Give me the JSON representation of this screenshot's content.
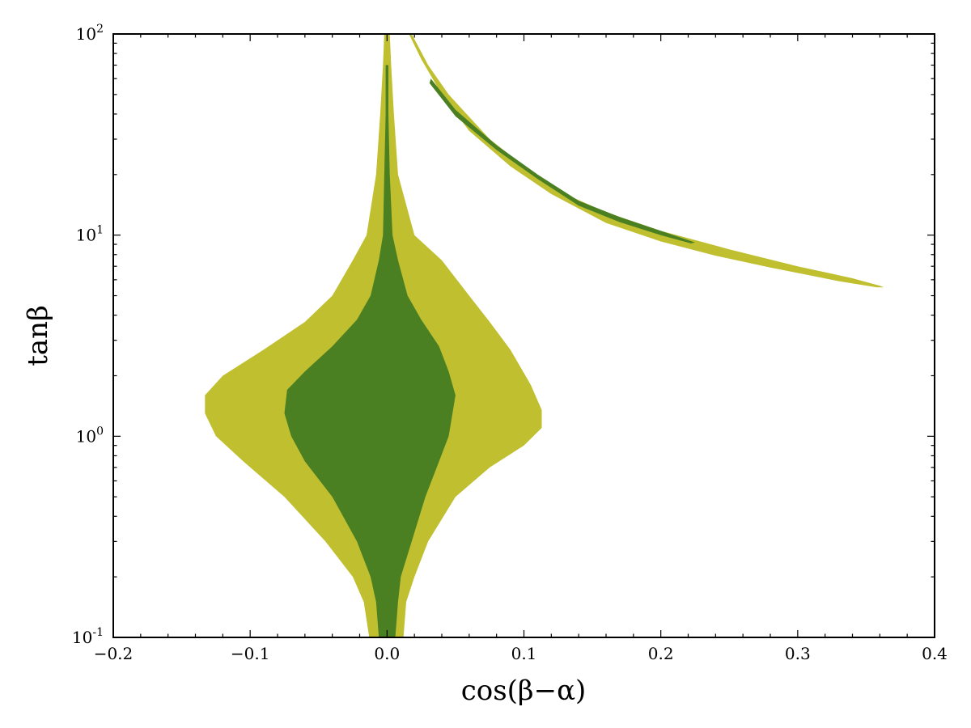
{
  "chart_data": {
    "type": "area",
    "title": "",
    "xlabel": "cos(β−α)",
    "ylabel": "tanβ",
    "xscale": "linear",
    "yscale": "log",
    "xlim": [
      -0.2,
      0.4
    ],
    "ylim": [
      0.1,
      100
    ],
    "grid": false,
    "x_ticks": [
      -0.2,
      -0.1,
      0.0,
      0.1,
      0.2,
      0.3,
      0.4
    ],
    "x_tick_labels": [
      "−0.2",
      "−0.1",
      "0.0",
      "0.1",
      "0.2",
      "0.3",
      "0.4"
    ],
    "y_ticks": [
      0.1,
      1,
      10,
      100
    ],
    "y_tick_labels": [
      {
        "base": "10",
        "exp": "-1"
      },
      {
        "base": "10",
        "exp": "0"
      },
      {
        "base": "10",
        "exp": "1"
      },
      {
        "base": "10",
        "exp": "2"
      }
    ],
    "colors": {
      "outer": "#bfbf30",
      "inner": "#4a8022"
    },
    "regions": [
      {
        "level": "outer",
        "points": [
          [
            -0.013,
            0.1
          ],
          [
            -0.017,
            0.15
          ],
          [
            -0.025,
            0.2
          ],
          [
            -0.045,
            0.3
          ],
          [
            -0.075,
            0.5
          ],
          [
            -0.105,
            0.75
          ],
          [
            -0.125,
            1.0
          ],
          [
            -0.133,
            1.3
          ],
          [
            -0.133,
            1.6
          ],
          [
            -0.12,
            2.0
          ],
          [
            -0.09,
            2.7
          ],
          [
            -0.06,
            3.7
          ],
          [
            -0.04,
            5.0
          ],
          [
            -0.025,
            7.5
          ],
          [
            -0.015,
            10
          ],
          [
            -0.008,
            20
          ],
          [
            -0.005,
            40
          ],
          [
            -0.003,
            70
          ],
          [
            -0.002,
            100
          ],
          [
            0.002,
            100
          ],
          [
            0.003,
            70
          ],
          [
            0.005,
            40
          ],
          [
            0.008,
            20
          ],
          [
            0.02,
            10
          ],
          [
            0.04,
            7.5
          ],
          [
            0.06,
            5.0
          ],
          [
            0.075,
            3.7
          ],
          [
            0.09,
            2.7
          ],
          [
            0.105,
            1.8
          ],
          [
            0.113,
            1.35
          ],
          [
            0.113,
            1.1
          ],
          [
            0.1,
            0.9
          ],
          [
            0.075,
            0.7
          ],
          [
            0.05,
            0.5
          ],
          [
            0.03,
            0.3
          ],
          [
            0.02,
            0.2
          ],
          [
            0.014,
            0.15
          ],
          [
            0.012,
            0.1
          ]
        ]
      },
      {
        "level": "inner",
        "points": [
          [
            -0.006,
            0.1
          ],
          [
            -0.008,
            0.15
          ],
          [
            -0.012,
            0.2
          ],
          [
            -0.022,
            0.3
          ],
          [
            -0.04,
            0.5
          ],
          [
            -0.06,
            0.75
          ],
          [
            -0.07,
            1.0
          ],
          [
            -0.075,
            1.3
          ],
          [
            -0.073,
            1.7
          ],
          [
            -0.06,
            2.1
          ],
          [
            -0.04,
            2.8
          ],
          [
            -0.022,
            3.8
          ],
          [
            -0.012,
            5.0
          ],
          [
            -0.006,
            7.5
          ],
          [
            -0.003,
            10
          ],
          [
            -0.002,
            20
          ],
          [
            -0.001,
            40
          ],
          [
            -0.001,
            70
          ],
          [
            0.001,
            70
          ],
          [
            0.001,
            40
          ],
          [
            0.002,
            20
          ],
          [
            0.004,
            10
          ],
          [
            0.008,
            7.5
          ],
          [
            0.015,
            5.0
          ],
          [
            0.025,
            3.8
          ],
          [
            0.038,
            2.8
          ],
          [
            0.045,
            2.1
          ],
          [
            0.05,
            1.6
          ],
          [
            0.047,
            1.2
          ],
          [
            0.045,
            1.0
          ],
          [
            0.038,
            0.75
          ],
          [
            0.028,
            0.5
          ],
          [
            0.018,
            0.3
          ],
          [
            0.01,
            0.2
          ],
          [
            0.008,
            0.15
          ],
          [
            0.006,
            0.1
          ]
        ]
      },
      {
        "level": "outer",
        "points": [
          [
            0.018,
            100
          ],
          [
            0.03,
            70
          ],
          [
            0.045,
            50
          ],
          [
            0.075,
            30
          ],
          [
            0.1,
            22
          ],
          [
            0.13,
            16
          ],
          [
            0.16,
            13
          ],
          [
            0.2,
            10.5
          ],
          [
            0.25,
            8.5
          ],
          [
            0.3,
            7.0
          ],
          [
            0.34,
            6.1
          ],
          [
            0.36,
            5.6
          ],
          [
            0.363,
            5.5
          ],
          [
            0.358,
            5.5
          ],
          [
            0.33,
            5.9
          ],
          [
            0.28,
            6.9
          ],
          [
            0.24,
            7.9
          ],
          [
            0.2,
            9.3
          ],
          [
            0.16,
            11.5
          ],
          [
            0.12,
            16
          ],
          [
            0.09,
            22
          ],
          [
            0.06,
            33
          ],
          [
            0.04,
            50
          ],
          [
            0.025,
            75
          ],
          [
            0.016,
            100
          ]
        ]
      },
      {
        "level": "inner",
        "points": [
          [
            0.032,
            60
          ],
          [
            0.05,
            42
          ],
          [
            0.08,
            28
          ],
          [
            0.11,
            20
          ],
          [
            0.14,
            14.8
          ],
          [
            0.17,
            12.3
          ],
          [
            0.2,
            10.5
          ],
          [
            0.225,
            9.2
          ],
          [
            0.222,
            9.1
          ],
          [
            0.2,
            10.0
          ],
          [
            0.17,
            11.6
          ],
          [
            0.14,
            14.0
          ],
          [
            0.11,
            19
          ],
          [
            0.08,
            26.5
          ],
          [
            0.05,
            39
          ],
          [
            0.031,
            57
          ]
        ]
      }
    ]
  }
}
